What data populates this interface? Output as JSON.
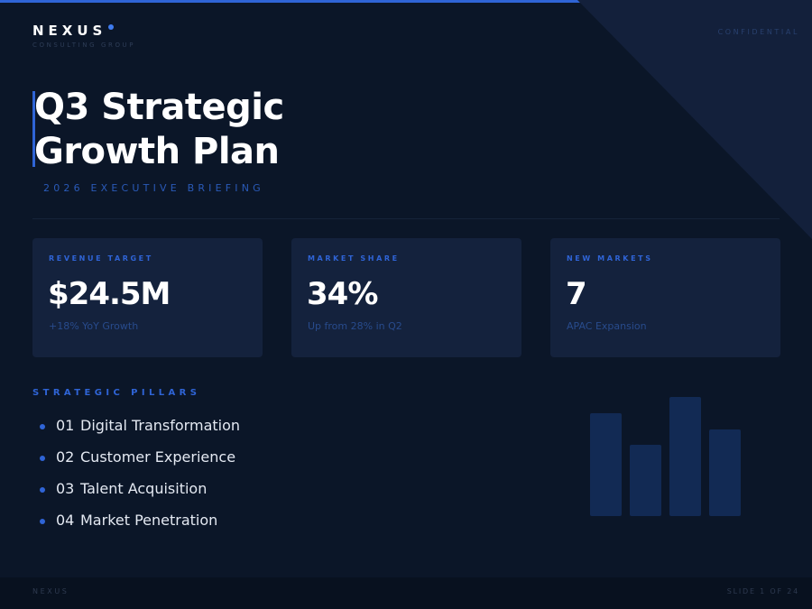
{
  "brand": {
    "name": "NEXUS",
    "tagline": "CONSULTING GROUP",
    "accent_color": "#2f64d6",
    "background_color": "#0b1628"
  },
  "confidential_label": "CONFIDENTIAL",
  "hero": {
    "title_line1": "Q3 Strategic",
    "title_line2": "Growth Plan",
    "subtitle": "2026 EXECUTIVE BRIEFING"
  },
  "metrics": [
    {
      "label": "REVENUE TARGET",
      "value": "$24.5M",
      "note": "+18% YoY Growth"
    },
    {
      "label": "MARKET SHARE",
      "value": "34%",
      "note": "Up from 28% in Q2"
    },
    {
      "label": "NEW MARKETS",
      "value": "7",
      "note": "APAC Expansion"
    }
  ],
  "pillars": {
    "heading": "STRATEGIC PILLARS",
    "items": [
      {
        "number": "01",
        "text": "Digital Transformation"
      },
      {
        "number": "02",
        "text": "Customer Experience"
      },
      {
        "number": "03",
        "text": "Talent Acquisition"
      },
      {
        "number": "04",
        "text": "Market Penetration"
      }
    ]
  },
  "decor_bars": {
    "values": [
      0.86,
      0.6,
      1.0,
      0.73
    ],
    "color": "#122a54"
  },
  "footer": {
    "brand": "NEXUS",
    "slide_indicator": "SLIDE 1 OF 24"
  }
}
